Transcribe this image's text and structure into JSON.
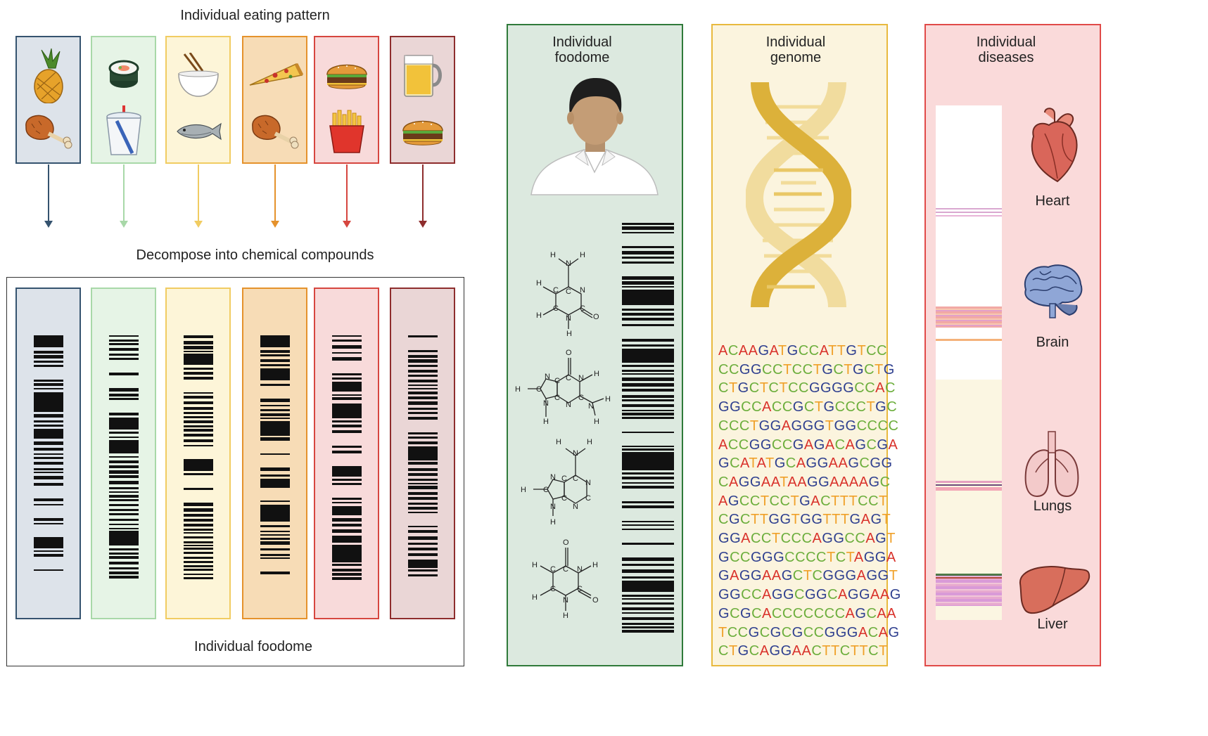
{
  "left": {
    "top_title": "Individual eating pattern",
    "middle_title": "Decompose into chemical compounds",
    "bottom_title": "Individual foodome",
    "colors": [
      {
        "fill": "#dde3ea",
        "stroke": "#35536f"
      },
      {
        "fill": "#e6f4e6",
        "stroke": "#a8d8a8"
      },
      {
        "fill": "#fdf5d8",
        "stroke": "#f1cc62"
      },
      {
        "fill": "#f7dcb6",
        "stroke": "#e5922c"
      },
      {
        "fill": "#f8dada",
        "stroke": "#d6463f"
      },
      {
        "fill": "#ead6d6",
        "stroke": "#8e2d2d"
      }
    ],
    "food_icons": [
      [
        "pineapple-icon",
        "chicken-leg-icon"
      ],
      [
        "sushi-roll-icon",
        "soda-cup-icon"
      ],
      [
        "rice-bowl-icon",
        "fish-icon"
      ],
      [
        "pizza-slice-icon",
        "chicken-leg-icon"
      ],
      [
        "burger-icon",
        "fries-icon"
      ],
      [
        "beer-mug-icon",
        "burger-icon"
      ]
    ]
  },
  "foodome": {
    "title_line1": "Individual",
    "title_line2": "foodome",
    "icons": [
      "person-icon",
      "cytosine-molecule-icon",
      "guanine-molecule-icon",
      "adenine-molecule-icon",
      "uracil-molecule-icon",
      "barcode-icon"
    ],
    "bg": "#dce9df",
    "border": "#2f7a3a"
  },
  "genome": {
    "title_line1": "Individual",
    "title_line2": "genome",
    "icon": "dna-helix-icon",
    "bg": "#fbf4de",
    "border": "#e8b93e",
    "base_colors": {
      "A": "#d9322b",
      "C": "#6cae3c",
      "G": "#2e3f8f",
      "T": "#f0a12a"
    },
    "sequence": [
      "ACAAGATGCCATTGTCC",
      "CCGGCCTCCTGCTGCTG",
      "CTGCTCTCCGGGGCCAC",
      "GGCCACCGCTGCCCTGC",
      "CCCTGGAGGGTGGCCCC",
      "ACCGGCCGAGACAGCGA",
      "GCATATGCAGGAAGCGG",
      "CAGGAATAAGGAAAAGC",
      "AGCCTCCTGACTTTCCT",
      "CGCTTGGTGGTTTGAGT",
      "GGACCTCCCAGGCCAGT",
      "GCCGGGCCCCTCTAGGA",
      "GAGGAAGCTCGGGAGGT",
      "GGCCAGGCGGCAGGAAG",
      "GCGCACCCCCCCAGCAA",
      "TCCGCGCGCCGGGACAG",
      "CTGCAGGAACTTCTTCT"
    ]
  },
  "diseases": {
    "title_line1": "Individual",
    "title_line2": "diseases",
    "bg": "#fadada",
    "border": "#e04a48",
    "organs": [
      {
        "name": "Heart",
        "icon": "heart-icon"
      },
      {
        "name": "Brain",
        "icon": "brain-icon"
      },
      {
        "name": "Lungs",
        "icon": "lungs-icon"
      },
      {
        "name": "Liver",
        "icon": "liver-icon"
      }
    ]
  }
}
